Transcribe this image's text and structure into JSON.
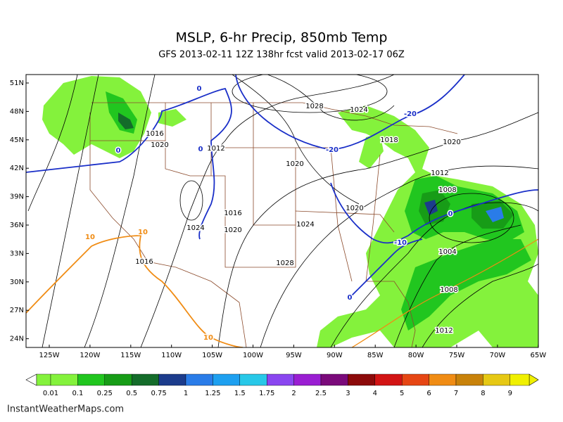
{
  "header": {
    "title": "MSLP, 6-hr Precip, 850mb Temp",
    "subtitle": "GFS 2013-02-11 12Z 138hr fcst valid 2013-02-17 06Z"
  },
  "map": {
    "lat_labels": [
      "51N",
      "48N",
      "45N",
      "42N",
      "39N",
      "36N",
      "33N",
      "30N",
      "27N",
      "24N"
    ],
    "lon_labels": [
      "125W",
      "120W",
      "115W",
      "110W",
      "105W",
      "100W",
      "95W",
      "90W",
      "85W",
      "80W",
      "75W",
      "70W",
      "65W"
    ],
    "contour_labels": [
      {
        "text": "0",
        "color": "#1a2fc8"
      },
      {
        "text": "1028",
        "color": "#000000"
      },
      {
        "text": "1024",
        "color": "#000000"
      },
      {
        "text": "-20",
        "color": "#1a2fc8"
      },
      {
        "text": "1016",
        "color": "#000000"
      },
      {
        "text": "1018",
        "color": "#000000"
      },
      {
        "text": "1020",
        "color": "#000000"
      },
      {
        "text": "0",
        "color": "#1a2fc8"
      },
      {
        "text": "0",
        "color": "#1a2fc8"
      },
      {
        "text": "1012",
        "color": "#000000"
      },
      {
        "text": "-20",
        "color": "#1a2fc8"
      },
      {
        "text": "1020",
        "color": "#000000"
      },
      {
        "text": "1020",
        "color": "#000000"
      },
      {
        "text": "1012",
        "color": "#000000"
      },
      {
        "text": "1008",
        "color": "#000000"
      },
      {
        "text": "1020",
        "color": "#000000"
      },
      {
        "text": "1016",
        "color": "#000000"
      },
      {
        "text": "0",
        "color": "#1a2fc8"
      },
      {
        "text": "1024",
        "color": "#000000"
      },
      {
        "text": "1020",
        "color": "#000000"
      },
      {
        "text": "1024",
        "color": "#000000"
      },
      {
        "text": "-10",
        "color": "#1a2fc8"
      },
      {
        "text": "1004",
        "color": "#000000"
      },
      {
        "text": "10",
        "color": "#f08c14"
      },
      {
        "text": "10",
        "color": "#f08c14"
      },
      {
        "text": "1016",
        "color": "#000000"
      },
      {
        "text": "1028",
        "color": "#000000"
      },
      {
        "text": "0",
        "color": "#1a2fc8"
      },
      {
        "text": "1008",
        "color": "#000000"
      },
      {
        "text": "1012",
        "color": "#000000"
      },
      {
        "text": "10",
        "color": "#f08c14"
      }
    ]
  },
  "colorbar": {
    "levels": [
      0.01,
      0.1,
      0.25,
      0.5,
      0.75,
      1,
      1.25,
      1.5,
      1.75,
      2,
      2.5,
      3,
      4,
      5,
      6,
      7,
      8,
      9
    ],
    "colors": [
      "#84f23c",
      "#84f23c",
      "#21c61f",
      "#179c17",
      "#146c2a",
      "#1c3c8c",
      "#2a7ce8",
      "#1ea0f0",
      "#28c8e8",
      "#8a46f0",
      "#9a1ed2",
      "#7a0a7a",
      "#8c0a0a",
      "#d21414",
      "#e64614",
      "#f08c14",
      "#c8820a",
      "#e6c814",
      "#f0f000"
    ]
  },
  "footer": {
    "text": "InstantWeatherMaps.com"
  }
}
